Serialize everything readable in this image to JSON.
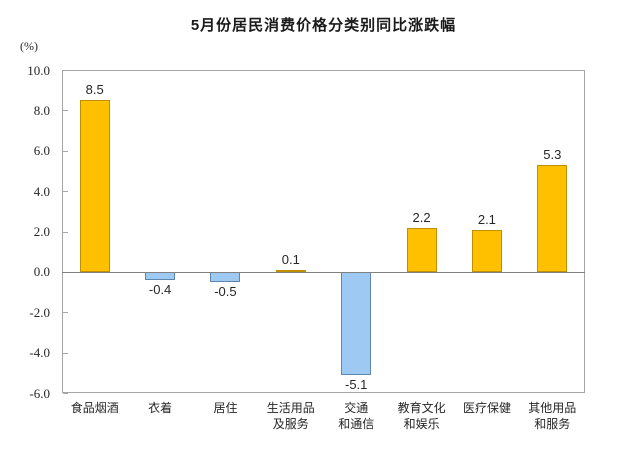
{
  "chart_data": {
    "type": "bar",
    "title": "5月份居民消费价格分类别同比涨跌幅",
    "unit_label": "(%)",
    "categories": [
      "食品烟酒",
      "衣着",
      "居住",
      "生活用品\n及服务",
      "交通\n和通信",
      "教育文化\n和娱乐",
      "医疗保健",
      "其他用品\n和服务"
    ],
    "values": [
      8.5,
      -0.4,
      -0.5,
      0.1,
      -5.1,
      2.2,
      2.1,
      5.3
    ],
    "value_labels": [
      "8.5",
      "-0.4",
      "-0.5",
      "0.1",
      "-5.1",
      "2.2",
      "2.1",
      "5.3"
    ],
    "ylim": [
      -6.0,
      10.0
    ],
    "ytick_labels": [
      "10.0",
      "8.0",
      "6.0",
      "4.0",
      "2.0",
      "0.0",
      "-2.0",
      "-4.0",
      "-6.0"
    ],
    "ytick_values": [
      10.0,
      8.0,
      6.0,
      4.0,
      2.0,
      0.0,
      -2.0,
      -4.0,
      -6.0
    ],
    "xlabel": "",
    "ylabel": "(%)",
    "grid": false,
    "legend_position": "none",
    "colors": {
      "positive_fill": "#ffc000",
      "positive_border": "#bf8f00",
      "negative_fill": "#9dc9f2",
      "negative_border": "#5e87b0",
      "axis_line": "#808080",
      "plot_border": "#a6a6a6",
      "text": "#262626"
    }
  }
}
